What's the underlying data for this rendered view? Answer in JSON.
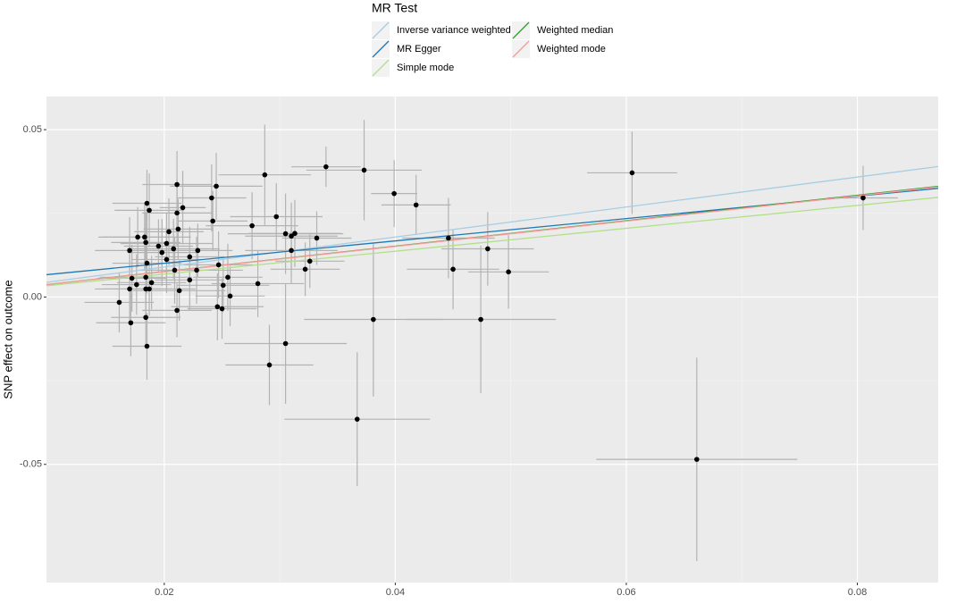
{
  "chart_data": {
    "type": "scatter",
    "y_label": "SNP effect on outcome",
    "legend_title": "MR Test",
    "xlim": [
      0.0098,
      0.087
    ],
    "ylim": [
      -0.0853,
      0.0599
    ],
    "xticks": [
      0.02,
      0.04,
      0.06,
      0.08
    ],
    "yticks": [
      -0.05,
      {
        "value": 0,
        "label": "0.00"
      },
      0.05
    ],
    "grid": true,
    "point_color": "#000000",
    "error_color": "#b3b3b3",
    "lines": [
      {
        "name": "Inverse variance weighted",
        "color": "#a6cee3",
        "intercept": 0,
        "slope": 0.448
      },
      {
        "name": "MR Egger",
        "color": "#1f78b4",
        "intercept": 0.0034,
        "slope": 0.334
      },
      {
        "name": "Simple mode",
        "color": "#b2df8a",
        "intercept": 0,
        "slope": 0.342
      },
      {
        "name": "Weighted median",
        "color": "#33a02c",
        "intercept": 0,
        "slope": 0.38
      },
      {
        "name": "Weighted mode",
        "color": "#fb9a99",
        "intercept": 0,
        "slope": 0.378
      }
    ],
    "x": [
      0.0605,
      0.0805,
      0.0661,
      0.0367,
      0.034,
      0.0373,
      0.0399,
      0.0418,
      0.0446,
      0.045,
      0.048,
      0.0498,
      0.0474,
      0.0381,
      0.0305,
      0.0291,
      0.0287,
      0.0297,
      0.0276,
      0.0305,
      0.0313,
      0.031,
      0.0332,
      0.031,
      0.0326,
      0.0322,
      0.0281,
      0.0241,
      0.0245,
      0.0242,
      0.0247,
      0.0251,
      0.0255,
      0.0257,
      0.0246,
      0.025,
      0.0211,
      0.0216,
      0.0211,
      0.0212,
      0.0204,
      0.0202,
      0.0195,
      0.0198,
      0.0208,
      0.0202,
      0.0222,
      0.0229,
      0.0228,
      0.0222,
      0.0209,
      0.0213,
      0.0211,
      0.0185,
      0.0187,
      0.0177,
      0.0183,
      0.0184,
      0.017,
      0.0185,
      0.0184,
      0.0189,
      0.0172,
      0.0176,
      0.017,
      0.0184,
      0.0187,
      0.0161,
      0.0171,
      0.0184,
      0.0185
    ],
    "values": [
      0.0371,
      0.0296,
      -0.0485,
      -0.0365,
      0.0389,
      0.0379,
      0.0309,
      0.0275,
      0.0176,
      0.0083,
      0.0144,
      0.0075,
      -0.0067,
      -0.0067,
      -0.0139,
      -0.0203,
      0.0365,
      0.024,
      0.0213,
      0.0189,
      0.019,
      0.0182,
      0.0176,
      0.0139,
      0.0107,
      0.0083,
      0.004,
      0.0296,
      0.0331,
      0.0227,
      0.0096,
      0.0035,
      0.0059,
      0.0003,
      -0.0029,
      -0.0035,
      0.0336,
      0.0267,
      0.0251,
      0.0203,
      0.0195,
      0.016,
      0.0152,
      0.0133,
      0.0144,
      0.0112,
      0.012,
      0.0139,
      0.008,
      0.0051,
      0.008,
      0.0019,
      -0.004,
      0.028,
      0.0259,
      0.0179,
      0.0179,
      0.0163,
      0.0139,
      0.0101,
      0.0059,
      0.0043,
      0.0056,
      0.0037,
      0.0024,
      0.0024,
      0.0024,
      -0.0016,
      -0.0077,
      -0.0061,
      -0.0147
    ],
    "x_err": [
      0.0039,
      0.003,
      0.0087,
      0.0063,
      0.003,
      0.005,
      0.002,
      0.003,
      0.004,
      0.004,
      0.004,
      0.0035,
      0.0065,
      0.006,
      0.0053,
      0.0038,
      0.004,
      0.004,
      0.004,
      0.005,
      0.004,
      0.004,
      0.003,
      0.004,
      0.003,
      0.003,
      0.004,
      0.003,
      0.004,
      0.003,
      0.003,
      0.004,
      0.003,
      0.003,
      0.004,
      0.003,
      0.003,
      0.002,
      0.003,
      0.003,
      0.003,
      0.004,
      0.003,
      0.003,
      0.004,
      0.003,
      0.003,
      0.003,
      0.004,
      0.003,
      0.003,
      0.004,
      0.003,
      0.003,
      0.003,
      0.003,
      0.004,
      0.003,
      0.003,
      0.003,
      0.004,
      0.003,
      0.003,
      0.003,
      0.003,
      0.003,
      0.004,
      0.003,
      0.003,
      0.003,
      0.003
    ],
    "y_err": [
      0.0123,
      0.0096,
      0.0304,
      0.02,
      0.006,
      0.015,
      0.01,
      0.009,
      0.012,
      0.012,
      0.011,
      0.011,
      0.022,
      0.023,
      0.018,
      0.012,
      0.015,
      0.01,
      0.01,
      0.012,
      0.01,
      0.01,
      0.008,
      0.01,
      0.008,
      0.008,
      0.01,
      0.01,
      0.01,
      0.009,
      0.01,
      0.008,
      0.01,
      0.009,
      0.01,
      0.009,
      0.01,
      0.011,
      0.01,
      0.009,
      0.01,
      0.009,
      0.008,
      0.01,
      0.009,
      0.01,
      0.009,
      0.008,
      0.01,
      0.009,
      0.01,
      0.009,
      0.008,
      0.01,
      0.011,
      0.009,
      0.01,
      0.009,
      0.01,
      0.009,
      0.01,
      0.008,
      0.01,
      0.009,
      0.01,
      0.009,
      0.008,
      0.009,
      0.01,
      0.009,
      0.01
    ]
  }
}
